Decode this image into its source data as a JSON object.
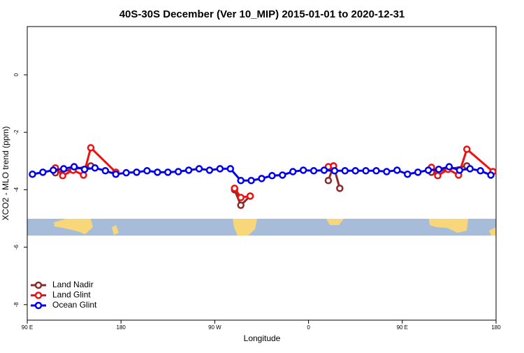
{
  "chart_data": {
    "type": "line",
    "title": "40S-30S December (Ver 10_MIP)   2015-01-01 to 2020-12-31",
    "x_label": "Longitude",
    "y_label": "XCO2 - MLO trend (ppm)",
    "xlim": [
      90,
      540
    ],
    "xticks": [
      {
        "value": 90,
        "label": "90 E"
      },
      {
        "value": 180,
        "label": "180"
      },
      {
        "value": 270,
        "label": "90 W"
      },
      {
        "value": 360,
        "label": "0"
      },
      {
        "value": 450,
        "label": "90 E"
      },
      {
        "value": 540,
        "label": "180"
      }
    ],
    "ylim": [
      -8.54,
      1.68
    ],
    "yticks": [
      0,
      -2,
      -4,
      -6,
      -8
    ],
    "legend": "bottom-left",
    "series": [
      {
        "name": "Land Nadir",
        "color": "#8b2a2a",
        "x": [
          117,
          151,
          null,
          289,
          295,
          304,
          null,
          379,
          384,
          390,
          null,
          478,
          512
        ],
        "values": [
          -3.41,
          -3.17,
          null,
          -4.0,
          -4.54,
          -4.22,
          null,
          -3.68,
          -3.17,
          -3.95,
          null,
          -3.39,
          -3.17
        ]
      },
      {
        "name": "Land Glint",
        "color": "#ee1111",
        "x": [
          117,
          124,
          134,
          144,
          151,
          175,
          null,
          289,
          295,
          304,
          null,
          379,
          384,
          null,
          478,
          484,
          494,
          504,
          512,
          537
        ],
        "values": [
          -3.24,
          -3.51,
          -3.32,
          -3.49,
          -2.54,
          -3.39,
          null,
          -3.95,
          -4.27,
          -4.22,
          null,
          -3.2,
          -3.17,
          null,
          -3.22,
          -3.51,
          -3.29,
          -3.49,
          -2.59,
          -3.37
        ]
      },
      {
        "name": "Ocean Glint",
        "color": "#0000ee",
        "x": [
          95,
          105,
          115,
          125,
          135,
          145,
          155,
          165,
          175,
          185,
          195,
          205,
          215,
          225,
          235,
          245,
          255,
          265,
          275,
          285,
          295,
          305,
          315,
          325,
          335,
          345,
          355,
          365,
          375,
          385,
          395,
          405,
          415,
          425,
          435,
          445,
          455,
          465,
          475,
          485,
          495,
          505,
          515,
          525,
          535
        ],
        "values": [
          -3.46,
          -3.39,
          -3.32,
          -3.27,
          -3.2,
          -3.29,
          -3.24,
          -3.34,
          -3.46,
          -3.41,
          -3.39,
          -3.34,
          -3.39,
          -3.39,
          -3.37,
          -3.32,
          -3.27,
          -3.32,
          -3.27,
          -3.27,
          -3.68,
          -3.68,
          -3.61,
          -3.51,
          -3.49,
          -3.37,
          -3.32,
          -3.34,
          -3.32,
          -3.34,
          -3.34,
          -3.34,
          -3.34,
          -3.34,
          -3.37,
          -3.32,
          -3.46,
          -3.39,
          -3.32,
          -3.29,
          -3.2,
          -3.32,
          -3.27,
          -3.34,
          -3.49
        ]
      }
    ]
  }
}
